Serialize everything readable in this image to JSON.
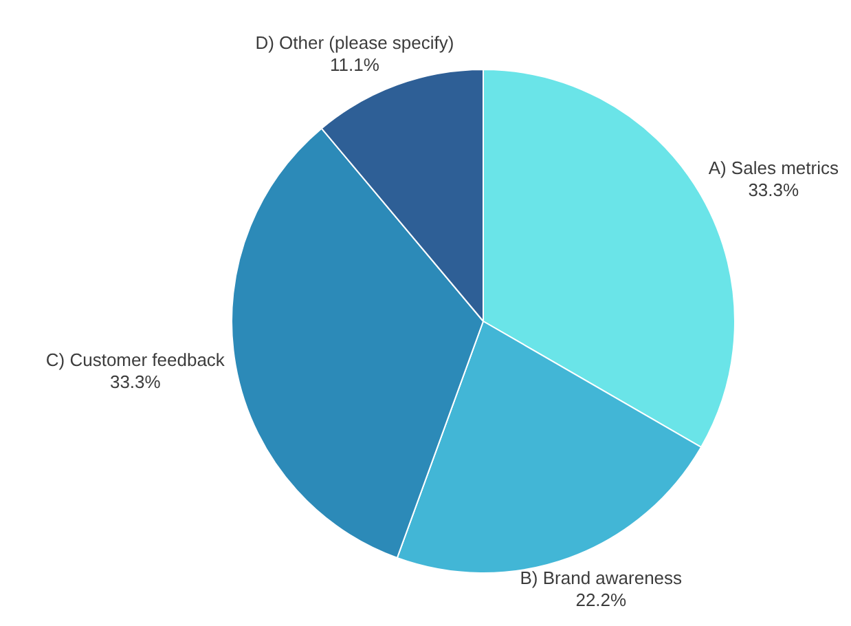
{
  "chart_data": {
    "type": "pie",
    "categories": [
      "A) Sales metrics",
      "B) Brand awareness",
      "C) Customer feedback",
      "D) Other (please specify)"
    ],
    "values": [
      33.3,
      22.2,
      33.3,
      11.1
    ],
    "value_labels": [
      "33.3%",
      "22.2%",
      "33.3%",
      "11.1%"
    ],
    "colors": [
      "#6ae4e8",
      "#42b6d6",
      "#2c8ab8",
      "#2e5f96"
    ]
  }
}
